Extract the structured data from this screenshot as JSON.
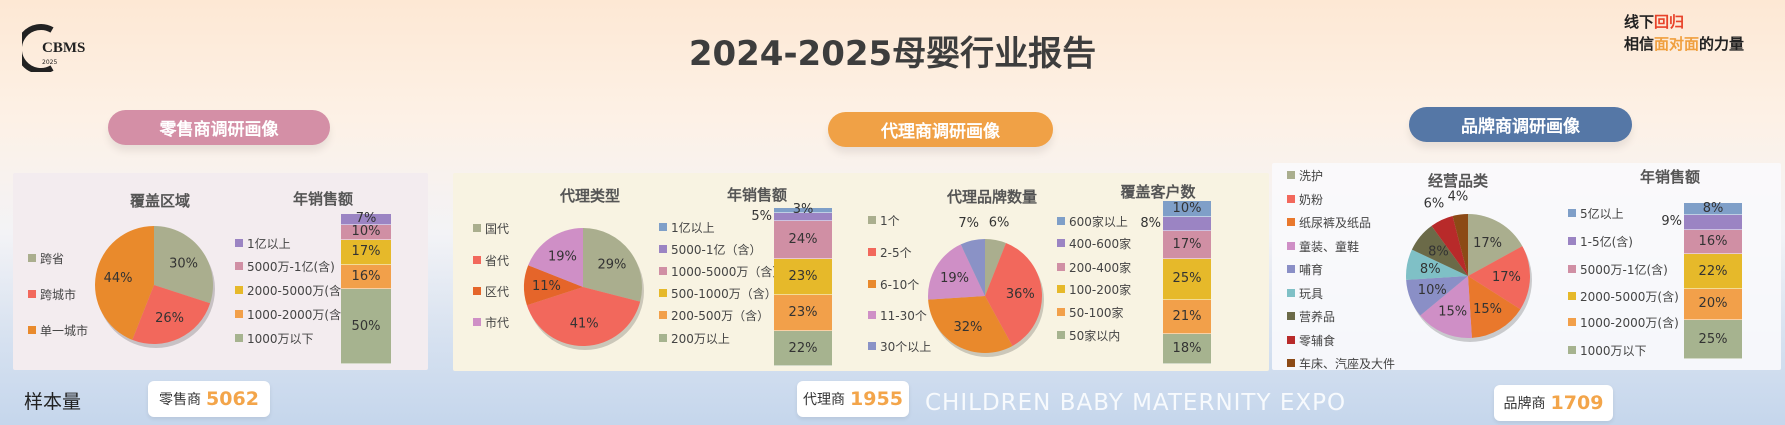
{
  "header": {
    "title": "2024-2025母婴行业报告",
    "logo_left": "CBMS 2025孕婴童产业峰会",
    "logo_right": "线下回归 相信面对面的力量"
  },
  "sections": [
    {
      "label": "零售商调研画像",
      "color": "#d48fa6"
    },
    {
      "label": "代理商调研画像",
      "color": "#f0a146"
    },
    {
      "label": "品牌商调研画像",
      "color": "#5577a6"
    }
  ],
  "footer": {
    "sample_label": "样本量",
    "watermark": "CHILDREN BABY MATERNITY EXPO",
    "badges": [
      {
        "label": "零售商",
        "value": "5062"
      },
      {
        "label": "代理商",
        "value": "1955"
      },
      {
        "label": "品牌商",
        "value": "1709"
      }
    ]
  },
  "chart_data": [
    {
      "type": "pie",
      "title": "覆盖区域",
      "categories": [
        "跨省",
        "跨城市",
        "单一城市"
      ],
      "values": [
        30,
        26,
        44
      ],
      "colors": [
        "#aaae8e",
        "#f2685c",
        "#e98a2c"
      ]
    },
    {
      "type": "bar",
      "stacked": true,
      "title": "年销售额",
      "categories": [
        "1亿以上",
        "5000万-1亿(含)",
        "2000-5000万(含)",
        "1000-2000万(含)",
        "1000万以下"
      ],
      "values": [
        7,
        10,
        17,
        16,
        50
      ],
      "colors": [
        "#9b84c3",
        "#d08fa4",
        "#e6b92a",
        "#f2a04a",
        "#a6b38f"
      ]
    },
    {
      "type": "pie",
      "title": "代理类型",
      "categories": [
        "国代",
        "省代",
        "区代",
        "市代"
      ],
      "values": [
        29,
        41,
        11,
        19
      ],
      "colors": [
        "#aaae8e",
        "#f2685c",
        "#e5652a",
        "#cf8fc6"
      ]
    },
    {
      "type": "bar",
      "stacked": true,
      "title": "年销售额",
      "categories": [
        "1亿以上",
        "5000-1亿（含）",
        "1000-5000万（含）",
        "500-1000万（含）",
        "200-500万（含）",
        "200万以上"
      ],
      "values": [
        3,
        5,
        24,
        23,
        23,
        22
      ],
      "colors": [
        "#7f9fc8",
        "#9b84c3",
        "#d08fa4",
        "#e6b92a",
        "#f2a04a",
        "#a6b38f"
      ]
    },
    {
      "type": "pie",
      "title": "代理品牌数量",
      "categories": [
        "1个",
        "2-5个",
        "6-10个",
        "11-30个",
        "30个以上"
      ],
      "values": [
        6,
        36,
        32,
        19,
        7
      ],
      "colors": [
        "#aaae8e",
        "#f2685c",
        "#e9892c",
        "#cf8fc6",
        "#8a92c6"
      ]
    },
    {
      "type": "bar",
      "stacked": true,
      "title": "覆盖客户数",
      "categories": [
        "600家以上",
        "400-600家",
        "200-400家",
        "100-200家",
        "50-100家",
        "50家以内"
      ],
      "values": [
        10,
        8,
        17,
        25,
        21,
        18
      ],
      "colors": [
        "#7f9fc8",
        "#9b84c3",
        "#d08fa4",
        "#e6b92a",
        "#f2a04a",
        "#a6b38f"
      ]
    },
    {
      "type": "pie",
      "title": "经营品类",
      "categories": [
        "洗护",
        "奶粉",
        "纸尿裤及纸品",
        "童装、童鞋",
        "哺育",
        "玩具",
        "营养品",
        "零辅食",
        "车床、汽座及大件"
      ],
      "values": [
        17,
        17,
        15,
        15,
        10,
        8,
        8,
        6,
        4
      ],
      "colors": [
        "#aaae8e",
        "#f2685c",
        "#e9782c",
        "#cf8fc6",
        "#8a8fc6",
        "#7fc0c6",
        "#6b6a48",
        "#b82a2a",
        "#8c4a16"
      ]
    },
    {
      "type": "bar",
      "stacked": true,
      "title": "年销售额",
      "categories": [
        "5亿以上",
        "1-5亿(含)",
        "5000万-1亿(含)",
        "2000-5000万(含)",
        "1000-2000万(含)",
        "1000万以下"
      ],
      "values": [
        8,
        9,
        16,
        22,
        20,
        25
      ],
      "colors": [
        "#7f9fc8",
        "#9b84c3",
        "#d08fa4",
        "#e6b92a",
        "#f2a04a",
        "#a6b38f"
      ]
    }
  ]
}
